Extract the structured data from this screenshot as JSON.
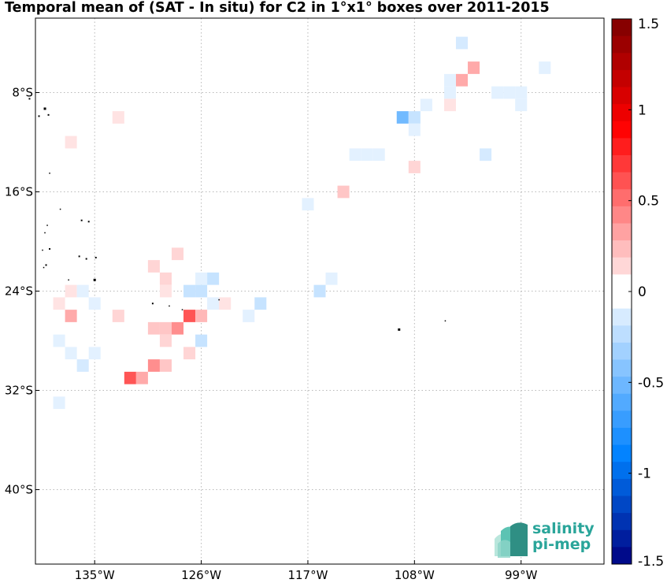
{
  "title": "Temporal mean of (SAT - In situ) for C2 in 1°x1° boxes over 2011-2015",
  "logo": {
    "line1": "salinity",
    "line2": "pi-mep"
  },
  "colors": {
    "positive_max": "#7a0000",
    "negative_max": "#000080",
    "grid": "#b0b0b0",
    "land": "#000000"
  },
  "map": {
    "lon_range": [
      -140,
      -92
    ],
    "lat_range": [
      -46,
      -2
    ],
    "lon_ticks": [
      {
        "value": -135,
        "label": "135°W"
      },
      {
        "value": -126,
        "label": "126°W"
      },
      {
        "value": -117,
        "label": "117°W"
      },
      {
        "value": -108,
        "label": "108°W"
      },
      {
        "value": -99,
        "label": "99°W"
      }
    ],
    "lat_ticks": [
      {
        "value": -8,
        "label": "8°S"
      },
      {
        "value": -16,
        "label": "16°S"
      },
      {
        "value": -24,
        "label": "24°S"
      },
      {
        "value": -32,
        "label": "32°S"
      },
      {
        "value": -40,
        "label": "40°S"
      }
    ],
    "boxes": [
      {
        "lon": -104,
        "lat": -4,
        "v": -0.15
      },
      {
        "lon": -103,
        "lat": -6,
        "v": 0.3
      },
      {
        "lon": -104,
        "lat": -7,
        "v": 0.3
      },
      {
        "lon": -105,
        "lat": -7,
        "v": -0.1
      },
      {
        "lon": -105,
        "lat": -8,
        "v": -0.1
      },
      {
        "lon": -97,
        "lat": -6,
        "v": -0.1
      },
      {
        "lon": -101,
        "lat": -8,
        "v": -0.1
      },
      {
        "lon": -100,
        "lat": -8,
        "v": -0.1
      },
      {
        "lon": -99,
        "lat": -8,
        "v": -0.1
      },
      {
        "lon": -99,
        "lat": -9,
        "v": -0.1
      },
      {
        "lon": -105,
        "lat": -9,
        "v": 0.1
      },
      {
        "lon": -107,
        "lat": -9,
        "v": -0.1
      },
      {
        "lon": -109,
        "lat": -10,
        "v": -0.5
      },
      {
        "lon": -108,
        "lat": -10,
        "v": -0.2
      },
      {
        "lon": -108,
        "lat": -11,
        "v": -0.1
      },
      {
        "lon": -113,
        "lat": -13,
        "v": -0.1
      },
      {
        "lon": -112,
        "lat": -13,
        "v": -0.1
      },
      {
        "lon": -111,
        "lat": -13,
        "v": -0.1
      },
      {
        "lon": -102,
        "lat": -13,
        "v": -0.15
      },
      {
        "lon": -108,
        "lat": -14,
        "v": 0.15
      },
      {
        "lon": -114,
        "lat": -16,
        "v": 0.2
      },
      {
        "lon": -117,
        "lat": -17,
        "v": -0.1
      },
      {
        "lon": -133,
        "lat": -10,
        "v": 0.1
      },
      {
        "lon": -137,
        "lat": -12,
        "v": 0.1
      },
      {
        "lon": -128,
        "lat": -21,
        "v": 0.15
      },
      {
        "lon": -130,
        "lat": -22,
        "v": 0.15
      },
      {
        "lon": -129,
        "lat": -23,
        "v": 0.15
      },
      {
        "lon": -129,
        "lat": -24,
        "v": 0.1
      },
      {
        "lon": -126,
        "lat": -23,
        "v": -0.1
      },
      {
        "lon": -125,
        "lat": -23,
        "v": -0.2
      },
      {
        "lon": -127,
        "lat": -24,
        "v": -0.2
      },
      {
        "lon": -126,
        "lat": -24,
        "v": -0.2
      },
      {
        "lon": -115,
        "lat": -23,
        "v": -0.1
      },
      {
        "lon": -116,
        "lat": -24,
        "v": -0.2
      },
      {
        "lon": -137,
        "lat": -24,
        "v": 0.1
      },
      {
        "lon": -136,
        "lat": -24,
        "v": -0.1
      },
      {
        "lon": -138,
        "lat": -25,
        "v": 0.1
      },
      {
        "lon": -135,
        "lat": -25,
        "v": -0.1
      },
      {
        "lon": -125,
        "lat": -25,
        "v": -0.1
      },
      {
        "lon": -124,
        "lat": -25,
        "v": 0.1
      },
      {
        "lon": -121,
        "lat": -25,
        "v": -0.2
      },
      {
        "lon": -122,
        "lat": -26,
        "v": -0.1
      },
      {
        "lon": -137,
        "lat": -26,
        "v": 0.3
      },
      {
        "lon": -133,
        "lat": -26,
        "v": 0.15
      },
      {
        "lon": -127,
        "lat": -26,
        "v": 0.6
      },
      {
        "lon": -126,
        "lat": -26,
        "v": 0.25
      },
      {
        "lon": -130,
        "lat": -27,
        "v": 0.2
      },
      {
        "lon": -129,
        "lat": -27,
        "v": 0.2
      },
      {
        "lon": -128,
        "lat": -27,
        "v": 0.4
      },
      {
        "lon": -138,
        "lat": -28,
        "v": -0.1
      },
      {
        "lon": -129,
        "lat": -28,
        "v": 0.15
      },
      {
        "lon": -126,
        "lat": -28,
        "v": -0.2
      },
      {
        "lon": -137,
        "lat": -29,
        "v": -0.1
      },
      {
        "lon": -135,
        "lat": -29,
        "v": -0.1
      },
      {
        "lon": -127,
        "lat": -29,
        "v": 0.15
      },
      {
        "lon": -136,
        "lat": -30,
        "v": -0.15
      },
      {
        "lon": -130,
        "lat": -30,
        "v": 0.4
      },
      {
        "lon": -129,
        "lat": -30,
        "v": 0.2
      },
      {
        "lon": -132,
        "lat": -31,
        "v": 0.6
      },
      {
        "lon": -131,
        "lat": -31,
        "v": 0.3
      },
      {
        "lon": -138,
        "lat": -33,
        "v": -0.1
      }
    ],
    "land": [
      {
        "lon": -140.5,
        "lat": -8.5,
        "s": 2
      },
      {
        "lon": -139.2,
        "lat": -9.3,
        "s": 3
      },
      {
        "lon": -138.9,
        "lat": -9.8,
        "s": 2
      },
      {
        "lon": -139.7,
        "lat": -9.9,
        "s": 2
      },
      {
        "lon": -138.8,
        "lat": -14.5,
        "s": 1.5
      },
      {
        "lon": -137.9,
        "lat": -17.4,
        "s": 1.5
      },
      {
        "lon": -136.1,
        "lat": -18.3,
        "s": 2
      },
      {
        "lon": -135.5,
        "lat": -18.4,
        "s": 2
      },
      {
        "lon": -139.0,
        "lat": -18.7,
        "s": 1.5
      },
      {
        "lon": -139.2,
        "lat": -19.3,
        "s": 1.5
      },
      {
        "lon": -138.8,
        "lat": -20.6,
        "s": 2
      },
      {
        "lon": -139.4,
        "lat": -20.7,
        "s": 1.5
      },
      {
        "lon": -136.3,
        "lat": -21.2,
        "s": 2
      },
      {
        "lon": -135.7,
        "lat": -21.4,
        "s": 2
      },
      {
        "lon": -134.9,
        "lat": -21.3,
        "s": 2
      },
      {
        "lon": -139.1,
        "lat": -21.9,
        "s": 2
      },
      {
        "lon": -139.3,
        "lat": -22.1,
        "s": 1.5
      },
      {
        "lon": -137.2,
        "lat": -23.1,
        "s": 1.5
      },
      {
        "lon": -135.0,
        "lat": -23.1,
        "s": 3
      },
      {
        "lon": -130.1,
        "lat": -25.0,
        "s": 2
      },
      {
        "lon": -128.7,
        "lat": -25.2,
        "s": 1.5
      },
      {
        "lon": -127.6,
        "lat": -25.5,
        "s": 1.5
      },
      {
        "lon": -124.5,
        "lat": -24.7,
        "s": 1.5
      },
      {
        "lon": -109.3,
        "lat": -27.1,
        "s": 3
      },
      {
        "lon": -105.4,
        "lat": -26.4,
        "s": 1.5
      }
    ]
  },
  "colorbar": {
    "range": [
      -1.5,
      1.5
    ],
    "levels": 32,
    "tick_labels": [
      "1.5",
      "1",
      "0.5",
      "0",
      "-0.5",
      "-1",
      "-1.5"
    ],
    "tick_values": [
      1.5,
      1,
      0.5,
      0,
      -0.5,
      -1,
      -1.5
    ]
  }
}
